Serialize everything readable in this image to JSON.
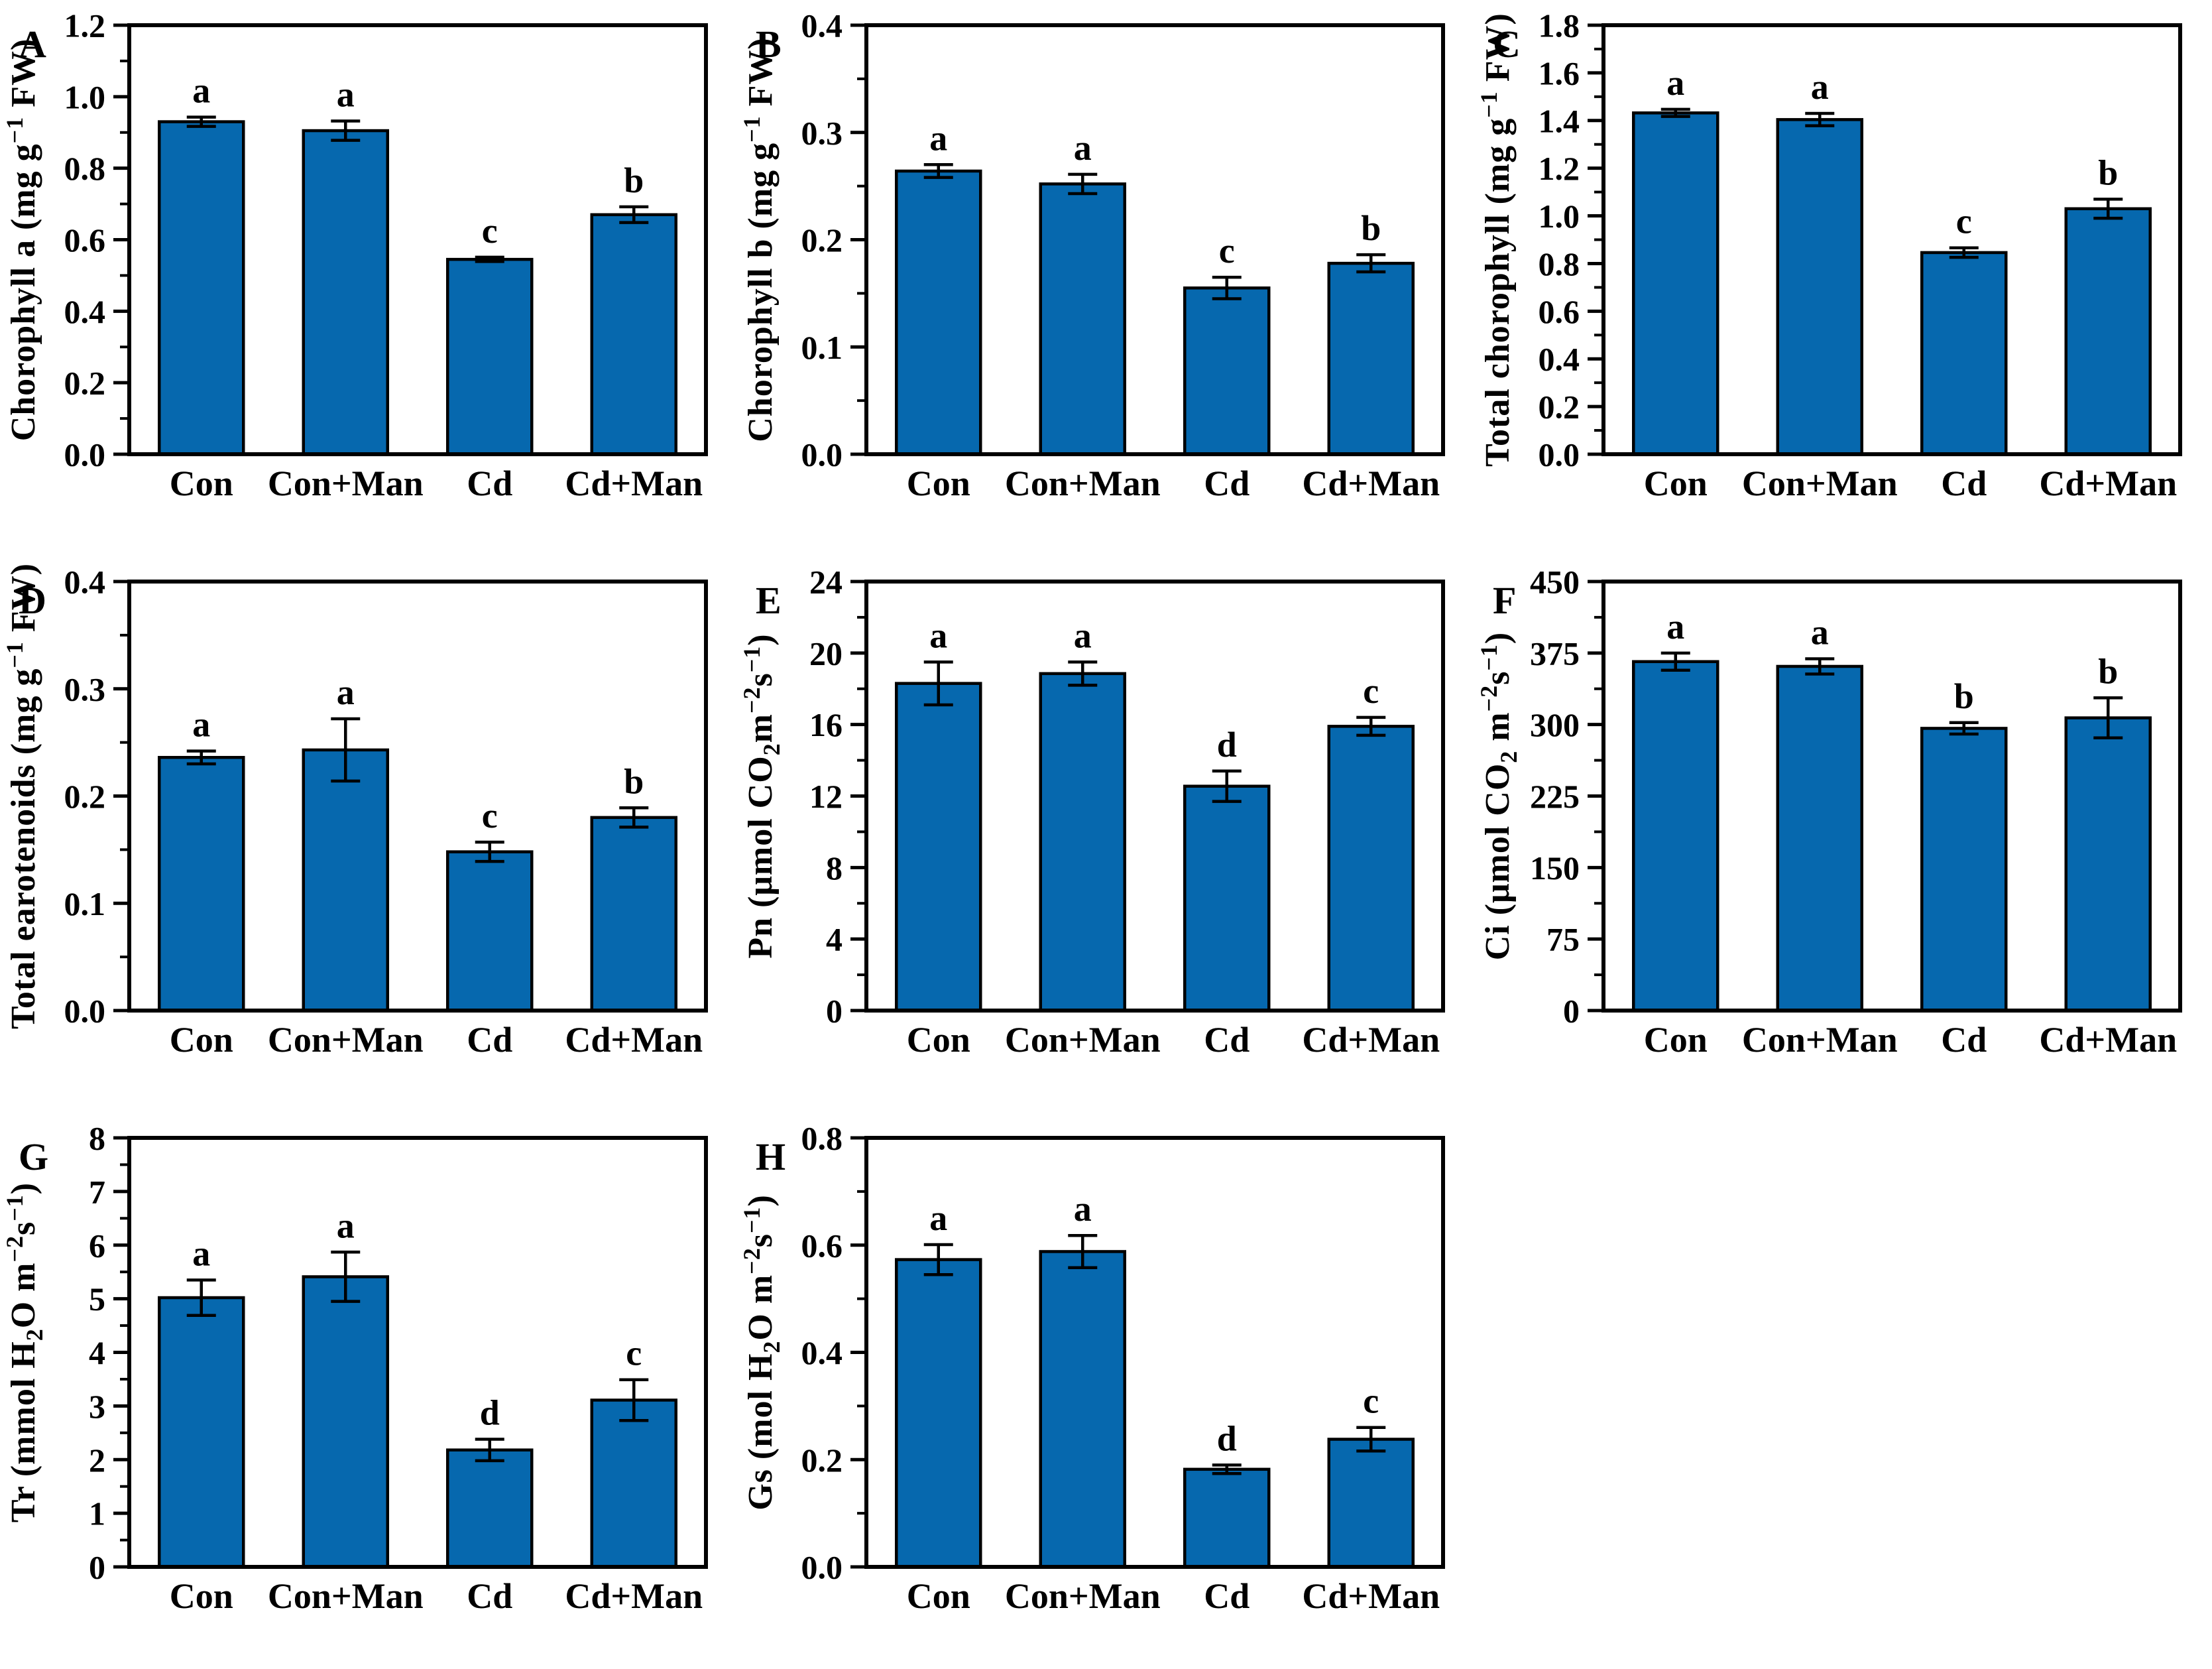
{
  "figure": {
    "bar_color": "#0668AE",
    "bar_edge_color": "#000000",
    "error_bar_color": "#000000",
    "text_color": "#000000",
    "background_color": "#ffffff",
    "categories": [
      "Con",
      "Con+Man",
      "Cd",
      "Cd+Man"
    ]
  },
  "chart_data": [
    {
      "letter": "A",
      "type": "bar",
      "title": "",
      "ylabel": "Chorophyll a (mg g^[−1] FW)",
      "xlabel": "",
      "categories": [
        "Con",
        "Con+Man",
        "Cd",
        "Cd+Man"
      ],
      "values": [
        0.93,
        0.905,
        0.545,
        0.67
      ],
      "errors": [
        0.013,
        0.027,
        0.006,
        0.022
      ],
      "sig_letters": [
        "a",
        "a",
        "c",
        "b"
      ],
      "ylim": [
        0,
        1.2
      ],
      "ytick_step": 0.2,
      "decimals": 1,
      "grid": "off",
      "legend": "none"
    },
    {
      "letter": "B",
      "type": "bar",
      "title": "",
      "ylabel": "Chorophyll b (mg g^[−1] FW)",
      "xlabel": "",
      "categories": [
        "Con",
        "Con+Man",
        "Cd",
        "Cd+Man"
      ],
      "values": [
        0.264,
        0.252,
        0.155,
        0.178
      ],
      "errors": [
        0.006,
        0.009,
        0.01,
        0.008
      ],
      "sig_letters": [
        "a",
        "a",
        "c",
        "b"
      ],
      "ylim": [
        0,
        0.4
      ],
      "ytick_step": 0.1,
      "decimals": 1,
      "grid": "off",
      "legend": "none"
    },
    {
      "letter": "C",
      "type": "bar",
      "title": "",
      "ylabel": "Total chorophyll (mg g^[−1] FW)",
      "xlabel": "",
      "categories": [
        "Con",
        "Con+Man",
        "Cd",
        "Cd+Man"
      ],
      "values": [
        1.432,
        1.404,
        0.846,
        1.03
      ],
      "errors": [
        0.015,
        0.026,
        0.02,
        0.04
      ],
      "sig_letters": [
        "a",
        "a",
        "c",
        "b"
      ],
      "ylim": [
        0,
        1.8
      ],
      "ytick_step": 0.2,
      "decimals": 1,
      "grid": "off",
      "legend": "none"
    },
    {
      "letter": "D",
      "type": "bar",
      "title": "",
      "ylabel": "Total earotenoids (mg g^[−1] FW)",
      "xlabel": "",
      "categories": [
        "Con",
        "Con+Man",
        "Cd",
        "Cd+Man"
      ],
      "values": [
        0.236,
        0.243,
        0.148,
        0.18
      ],
      "errors": [
        0.006,
        0.029,
        0.009,
        0.009
      ],
      "sig_letters": [
        "a",
        "a",
        "c",
        "b"
      ],
      "ylim": [
        0,
        0.4
      ],
      "ytick_step": 0.1,
      "decimals": 1,
      "grid": "off",
      "legend": "none"
    },
    {
      "letter": "E",
      "type": "bar",
      "title": "",
      "ylabel": "Pn (μmol CO_[2]m^[−2]s^[−1])",
      "xlabel": "",
      "categories": [
        "Con",
        "Con+Man",
        "Cd",
        "Cd+Man"
      ],
      "values": [
        18.3,
        18.85,
        12.55,
        15.9
      ],
      "errors": [
        1.2,
        0.65,
        0.85,
        0.5
      ],
      "sig_letters": [
        "a",
        "a",
        "d",
        "c"
      ],
      "ylim": [
        0,
        24
      ],
      "ytick_step": 4,
      "decimals": 0,
      "grid": "off",
      "legend": "none"
    },
    {
      "letter": "F",
      "type": "bar",
      "title": "",
      "ylabel": "Ci (μmol CO_[2] m^[−2]s^[−1])",
      "xlabel": "",
      "categories": [
        "Con",
        "Con+Man",
        "Cd",
        "Cd+Man"
      ],
      "values": [
        366,
        361,
        296,
        307
      ],
      "errors": [
        9,
        8,
        6,
        21
      ],
      "sig_letters": [
        "a",
        "a",
        "b",
        "b"
      ],
      "ylim": [
        0,
        450
      ],
      "ytick_step": 75,
      "decimals": 0,
      "grid": "off",
      "legend": "none"
    },
    {
      "letter": "G",
      "type": "bar",
      "title": "",
      "ylabel": "Tr (mmol H_[2]O m^[−2]s^[−1])",
      "xlabel": "",
      "categories": [
        "Con",
        "Con+Man",
        "Cd",
        "Cd+Man"
      ],
      "values": [
        5.02,
        5.41,
        2.18,
        3.11
      ],
      "errors": [
        0.33,
        0.46,
        0.2,
        0.38
      ],
      "sig_letters": [
        "a",
        "a",
        "d",
        "c"
      ],
      "ylim": [
        0,
        8
      ],
      "ytick_step": 1,
      "decimals": 0,
      "grid": "off",
      "legend": "none"
    },
    {
      "letter": "H",
      "type": "bar",
      "title": "",
      "ylabel": "Gs (mol H_[2]O m^[−2]s^[−1])",
      "xlabel": "",
      "categories": [
        "Con",
        "Con+Man",
        "Cd",
        "Cd+Man"
      ],
      "values": [
        0.573,
        0.588,
        0.182,
        0.238
      ],
      "errors": [
        0.028,
        0.03,
        0.008,
        0.022
      ],
      "sig_letters": [
        "a",
        "a",
        "d",
        "c"
      ],
      "ylim": [
        0,
        0.8
      ],
      "ytick_step": 0.2,
      "decimals": 1,
      "grid": "off",
      "legend": "none"
    }
  ]
}
